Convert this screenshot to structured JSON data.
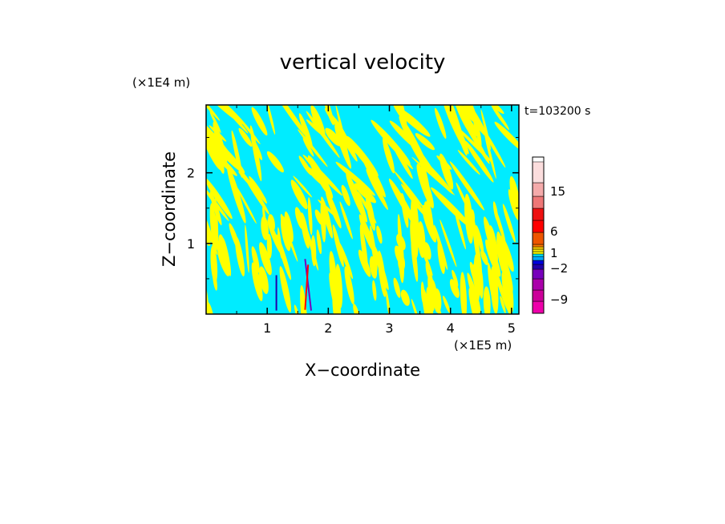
{
  "chart_data": {
    "type": "heatmap",
    "title": "vertical velocity",
    "xlabel": "X−coordinate",
    "ylabel": "Z−coordinate",
    "x_unit": "(×1E5 m)",
    "y_unit": "(×1E4 m)",
    "time_label": "t=103200 s",
    "x_ticks": [
      "1",
      "2",
      "3",
      "4",
      "5"
    ],
    "x_tick_values": [
      1,
      2,
      3,
      4,
      5
    ],
    "y_ticks": [
      "1",
      "2"
    ],
    "y_tick_values": [
      1,
      2
    ],
    "xlim": [
      0,
      5.12
    ],
    "ylim": [
      0,
      2.96
    ],
    "colorbar": {
      "tick_labels": [
        "15",
        "6",
        "1",
        "−2",
        "−9"
      ],
      "tick_values": [
        15,
        6,
        1,
        -2,
        -9
      ],
      "colors": [
        "#ee00aa",
        "#cc0099",
        "#aa00aa",
        "#7700bb",
        "#2200aa",
        "#0000dd",
        "#00aaff",
        "#00ecff",
        "#ffff00",
        "#ffee00",
        "#ffcc00",
        "#ff7700",
        "#ee5500",
        "#ff0000",
        "#ee1111",
        "#ee7777",
        "#f4aaaa",
        "#fbdddd"
      ]
    },
    "dominant_colors": {
      "positive": "#ffff00",
      "negative": "#00ecff"
    }
  }
}
